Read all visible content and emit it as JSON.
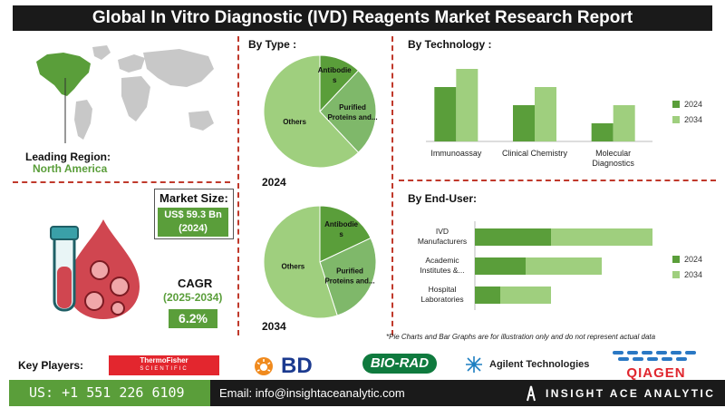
{
  "title": "Global In Vitro Diagnostic (IVD) Reagents Market Research Report",
  "leading_region": {
    "label": "Leading Region:",
    "value": "North America"
  },
  "market_size": {
    "label": "Market Size:",
    "value_line1": "US$ 59.3 Bn",
    "value_line2": "(2024)"
  },
  "cagr": {
    "label": "CAGR",
    "period": "(2025-2034)",
    "value": "6.2%"
  },
  "by_type": {
    "title": "By Type :",
    "year_top": "2024",
    "year_bottom": "2034"
  },
  "by_technology": {
    "title": "By  Technology :"
  },
  "by_end_user": {
    "title": "By End-User:"
  },
  "legend": {
    "y2024": "2024",
    "y2034": "2034"
  },
  "note": "*Pie Charts and Bar Graphs are for illustration only and do not represent actual data",
  "key_players": {
    "label": "Key Players:"
  },
  "logos": {
    "thermo": "ThermoFisher",
    "thermo_sub": "SCIENTIFIC",
    "bd": "BD",
    "biorad": "BIO-RAD",
    "agilent": "Agilent Technologies",
    "qiagen": "QIAGEN"
  },
  "footer": {
    "phone": "US: +1 551 226 6109",
    "email": "Email: info@insightaceanalytic.com",
    "brand": "INSIGHT ACE ANALYTIC"
  },
  "colors": {
    "dark_green": "#5a9e3a",
    "light_green": "#9fcf7e",
    "mid_green": "#7fb86a",
    "accent_red": "#c0392b"
  },
  "chart_data": [
    {
      "type": "pie",
      "title": "2024",
      "labels": [
        "Antibodies",
        "Purified Proteins and...",
        "Others"
      ],
      "values": [
        12,
        26,
        62
      ]
    },
    {
      "type": "pie",
      "title": "2034",
      "labels": [
        "Antibodies",
        "Purified Proteins and...",
        "Others"
      ],
      "values": [
        18,
        27,
        55
      ]
    },
    {
      "type": "bar",
      "title": "By  Technology :",
      "categories": [
        "Immunoassay",
        "Clinical Chemistry",
        "Molecular Diagnostics"
      ],
      "series": [
        {
          "name": "2024",
          "values": [
            3,
            2,
            1
          ]
        },
        {
          "name": "2034",
          "values": [
            4,
            3,
            2
          ]
        }
      ],
      "ylim": [
        0,
        4.2
      ]
    },
    {
      "type": "bar",
      "orientation": "horizontal",
      "stacked": true,
      "title": "By End-User:",
      "categories": [
        "IVD Manufacturers",
        "Academic Institutes &...",
        "Hospital Laboratories"
      ],
      "series": [
        {
          "name": "2024",
          "values": [
            3,
            2,
            1
          ]
        },
        {
          "name": "2034",
          "values": [
            4,
            3,
            2
          ]
        }
      ],
      "xlim": [
        0,
        7
      ]
    }
  ]
}
